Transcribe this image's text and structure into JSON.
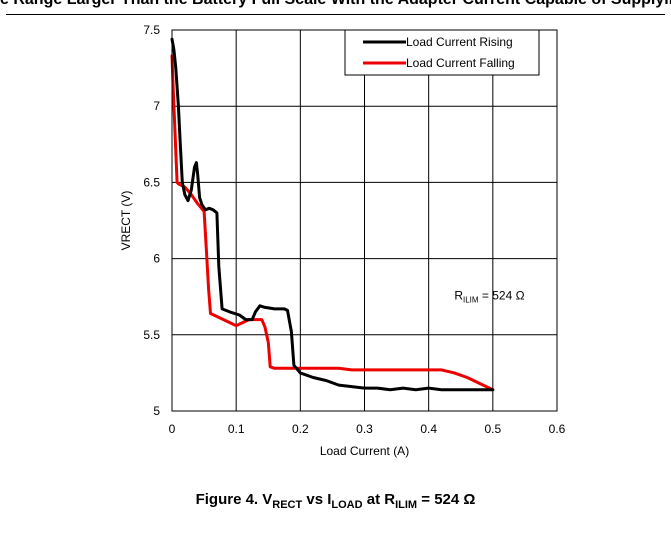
{
  "page": {
    "header_text": "e Range Larger Than the Battery Full Scale With the Adapter Current Capable of Supplying"
  },
  "figure": {
    "caption_prefix": "Figure 4. V",
    "caption_sub1": "RECT",
    "caption_mid": " vs I",
    "caption_sub2": "LOAD",
    "caption_mid2": " at R",
    "caption_sub3": "ILIM",
    "caption_suffix": " = 524 Ω"
  },
  "chart_data": {
    "type": "line",
    "xlabel": "Load Current (A)",
    "ylabel": "VRECT (V)",
    "xlim": [
      0,
      0.6
    ],
    "ylim": [
      5,
      7.5
    ],
    "x_ticks": [
      "0",
      "0.1",
      "0.2",
      "0.3",
      "0.4",
      "0.5",
      "0.6"
    ],
    "y_ticks": [
      "5",
      "5.5",
      "6",
      "6.5",
      "7",
      "7.5"
    ],
    "grid": true,
    "legend_position": "top-right",
    "annotation": {
      "main": "R",
      "sub": "ILIM",
      "rest": " = 524 Ω",
      "x": 0.44,
      "y": 5.73
    },
    "series": [
      {
        "name": "Load Current Rising",
        "color": "#000000",
        "x": [
          0,
          0.003,
          0.006,
          0.01,
          0.013,
          0.016,
          0.02,
          0.025,
          0.03,
          0.035,
          0.038,
          0.04,
          0.043,
          0.047,
          0.052,
          0.058,
          0.064,
          0.07,
          0.073,
          0.078,
          0.09,
          0.105,
          0.115,
          0.125,
          0.13,
          0.137,
          0.145,
          0.16,
          0.175,
          0.18,
          0.186,
          0.19,
          0.2,
          0.22,
          0.24,
          0.26,
          0.28,
          0.3,
          0.32,
          0.34,
          0.36,
          0.38,
          0.4,
          0.42,
          0.44,
          0.46,
          0.48,
          0.5
        ],
        "values": [
          7.44,
          7.37,
          7.25,
          7.0,
          6.75,
          6.5,
          6.42,
          6.38,
          6.45,
          6.6,
          6.63,
          6.55,
          6.4,
          6.35,
          6.32,
          6.33,
          6.32,
          6.3,
          5.95,
          5.67,
          5.65,
          5.63,
          5.6,
          5.6,
          5.65,
          5.69,
          5.68,
          5.67,
          5.67,
          5.66,
          5.52,
          5.3,
          5.25,
          5.22,
          5.2,
          5.17,
          5.16,
          5.15,
          5.15,
          5.14,
          5.15,
          5.14,
          5.15,
          5.14,
          5.14,
          5.14,
          5.14,
          5.14
        ]
      },
      {
        "name": "Load Current Falling",
        "color": "#ee0000",
        "x": [
          0,
          0.002,
          0.005,
          0.008,
          0.01,
          0.015,
          0.02,
          0.03,
          0.04,
          0.05,
          0.053,
          0.057,
          0.06,
          0.07,
          0.09,
          0.1,
          0.11,
          0.12,
          0.13,
          0.14,
          0.145,
          0.15,
          0.153,
          0.16,
          0.18,
          0.2,
          0.22,
          0.24,
          0.26,
          0.28,
          0.3,
          0.32,
          0.34,
          0.36,
          0.38,
          0.4,
          0.42,
          0.44,
          0.46,
          0.48,
          0.5
        ],
        "values": [
          7.33,
          7.1,
          6.8,
          6.5,
          6.49,
          6.48,
          6.47,
          6.42,
          6.36,
          6.31,
          6.1,
          5.8,
          5.64,
          5.62,
          5.58,
          5.56,
          5.58,
          5.6,
          5.6,
          5.6,
          5.55,
          5.45,
          5.29,
          5.28,
          5.28,
          5.28,
          5.28,
          5.28,
          5.28,
          5.27,
          5.27,
          5.27,
          5.27,
          5.27,
          5.27,
          5.27,
          5.27,
          5.25,
          5.22,
          5.18,
          5.14
        ]
      }
    ]
  }
}
